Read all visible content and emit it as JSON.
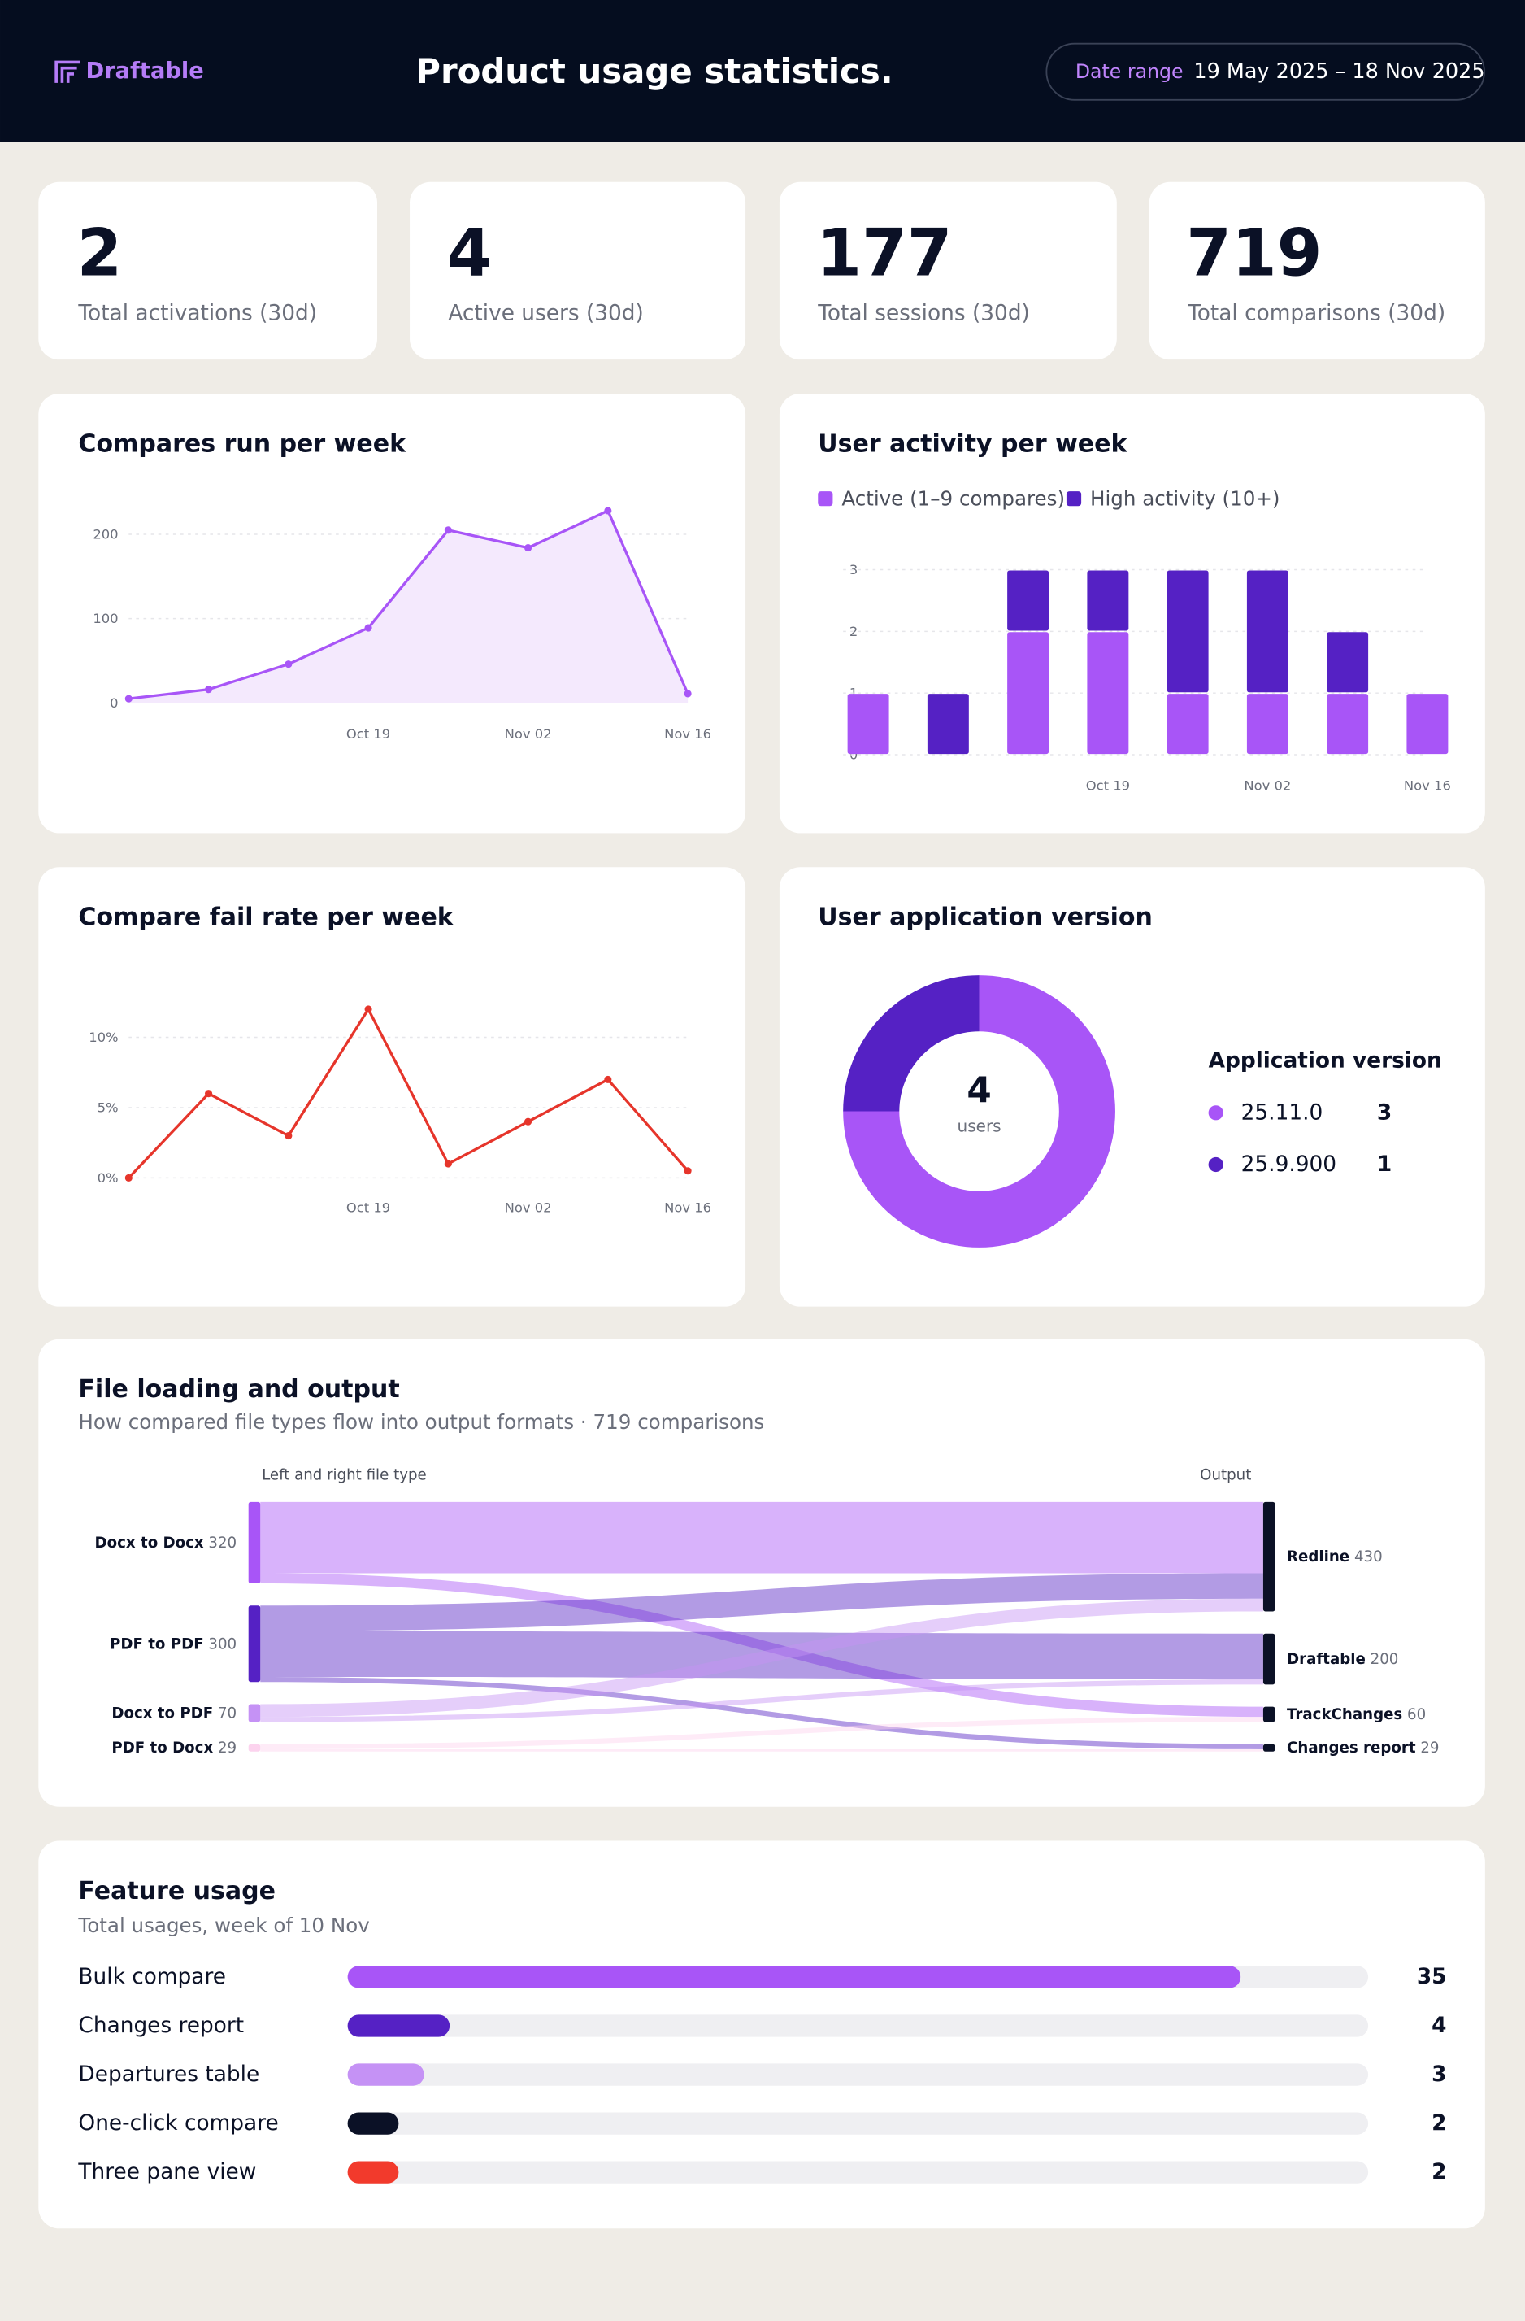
{
  "header": {
    "logo": "Draftable",
    "title": "Product usage statistics.",
    "date_label": "Date range",
    "date_value": "19 May 2025 – 18 Nov 2025"
  },
  "kpis": [
    {
      "value": 2,
      "label": "Total activations (30d)"
    },
    {
      "value": 4,
      "label": "Active users (30d)"
    },
    {
      "value": 177,
      "label": "Total sessions (30d)"
    },
    {
      "value": 719,
      "label": "Total comparisons (30d)"
    }
  ],
  "chart_data": [
    {
      "type": "line",
      "title": "Compares run per week",
      "categories": [
        null,
        null,
        null,
        "Oct 19",
        null,
        "Nov 02",
        null,
        "Nov 16"
      ],
      "values": [
        5,
        16,
        46,
        89,
        205,
        184,
        228,
        11
      ],
      "color": "#a855f7",
      "area": true,
      "area_color": "#f4e9fd",
      "ylim": [
        0,
        230
      ],
      "yticks": [
        0,
        100,
        200
      ],
      "grid": true
    },
    {
      "type": "stacked_bar",
      "title": "User activity per week",
      "categories": [
        null,
        null,
        null,
        "Oct 19",
        null,
        "Nov 02",
        null,
        "Nov 16"
      ],
      "series": [
        {
          "name": "Active (1–9 compares)",
          "color": "#a855f7",
          "values": [
            1,
            0,
            2,
            2,
            1,
            1,
            1,
            1
          ]
        },
        {
          "name": "High activity (10+)",
          "color": "#5521c4",
          "values": [
            0,
            1,
            1,
            1,
            2,
            2,
            1,
            0
          ]
        }
      ],
      "ylim": [
        0,
        3
      ],
      "yticks": [
        0,
        1,
        2,
        3
      ],
      "grid": true,
      "legend": "top-left"
    },
    {
      "type": "line",
      "title": "Compare fail rate per week",
      "categories": [
        null,
        null,
        null,
        "Oct 19",
        null,
        "Nov 02",
        null,
        "Nov 16"
      ],
      "values": [
        0,
        6,
        3,
        12,
        1,
        4,
        7,
        0.5
      ],
      "color": "#e6352b",
      "area": false,
      "ylim": [
        0,
        12
      ],
      "yticks": [
        {
          "value": 0,
          "label": "0%"
        },
        {
          "value": 5,
          "label": "5%"
        },
        {
          "value": 10,
          "label": "10%"
        }
      ],
      "grid": true
    },
    {
      "type": "pie",
      "title": "User application version",
      "center_value": 4,
      "center_label": "users",
      "legend_title": "Application version",
      "categories": [
        "25.11.0",
        "25.9.900"
      ],
      "values": [
        3,
        1
      ],
      "colors": [
        "#a855f7",
        "#5521c4"
      ]
    },
    {
      "type": "sankey",
      "title": "File loading and output",
      "subtitle": "How compared file types flow into output formats · 719 comparisons",
      "source_label": "Left and right file type",
      "target_label": "Output",
      "sources": [
        {
          "name": "Docx to Docx",
          "value": 320,
          "color": "#a855f7"
        },
        {
          "name": "PDF to PDF",
          "value": 300,
          "color": "#5521c4"
        },
        {
          "name": "Docx to PDF",
          "value": 70,
          "color": "#c592f5"
        },
        {
          "name": "PDF to Docx",
          "value": 29,
          "color": "#fcd3ee"
        }
      ],
      "targets": [
        {
          "name": "Redline",
          "value": 430,
          "color": "#0b1126"
        },
        {
          "name": "Draftable",
          "value": 200,
          "color": "#0b1126"
        },
        {
          "name": "TrackChanges",
          "value": 60,
          "color": "#0b1126"
        },
        {
          "name": "Changes report",
          "value": 29,
          "color": "#0b1126"
        }
      ],
      "links": [
        {
          "source": "Docx to Docx",
          "target": "Redline",
          "value": 280
        },
        {
          "source": "Docx to Docx",
          "target": "TrackChanges",
          "value": 40
        },
        {
          "source": "PDF to PDF",
          "target": "Redline",
          "value": 100
        },
        {
          "source": "PDF to PDF",
          "target": "Draftable",
          "value": 180
        },
        {
          "source": "PDF to PDF",
          "target": "Changes report",
          "value": 20
        },
        {
          "source": "Docx to PDF",
          "target": "Redline",
          "value": 50
        },
        {
          "source": "Docx to PDF",
          "target": "Draftable",
          "value": 20
        },
        {
          "source": "PDF to Docx",
          "target": "TrackChanges",
          "value": 20
        },
        {
          "source": "PDF to Docx",
          "target": "Changes report",
          "value": 9
        }
      ]
    },
    {
      "type": "barh",
      "title": "Feature usage",
      "subtitle": "Total usages, week of 10 Nov",
      "categories": [
        "Bulk compare",
        "Changes report",
        "Departures table",
        "One-click compare",
        "Three pane view"
      ],
      "values": [
        35,
        4,
        3,
        2,
        2
      ],
      "colors": [
        "#a855f7",
        "#5521c4",
        "#c592f5",
        "#0b1126",
        "#f23a2c"
      ],
      "xlim": [
        0,
        40
      ]
    }
  ]
}
